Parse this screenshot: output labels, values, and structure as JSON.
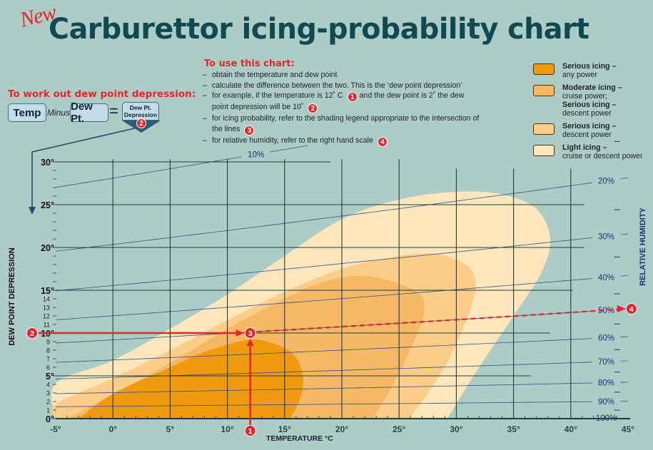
{
  "title": {
    "new": "New",
    "main": "Carburettor icing-probability chart"
  },
  "dew_point_box": {
    "heading": "To work out dew point depression:",
    "temp": "Temp",
    "minus": "Minus",
    "dew_pt": "Dew Pt.",
    "equals": "=",
    "result_line1": "Dew Pt.",
    "result_line2": "Depression",
    "marker": "2"
  },
  "instructions": {
    "heading": "To use this chart:",
    "items": [
      {
        "text": "obtain the temperature and dew point"
      },
      {
        "text": "calculate the difference between the two. This is the ‘dew point depression’"
      },
      {
        "text": "for example, if the temperature is 12˚ C",
        "marker": "1",
        "text2": " and the dew point is 2˚ the dew point depression will be 10˚",
        "marker2": "2"
      },
      {
        "text": "for icing probability, refer to the shading legend appropriate to the intersection of the lines",
        "marker": "3"
      },
      {
        "text": "for relative humidity, refer to the right hand scale",
        "marker": "4"
      }
    ]
  },
  "legend": [
    {
      "title": "Serious icing –",
      "sub": "any power",
      "color": "#f29a0e"
    },
    {
      "title": "Moderate icing –",
      "sub": "cruise power;",
      "title2": "Serious icing –",
      "sub2": "descent power",
      "color": "#f7b866"
    },
    {
      "title": "Serious icing –",
      "sub": "descent power",
      "color": "#fbcd88"
    },
    {
      "title": "Light icing –",
      "sub": "cruise or descent power",
      "color": "#fde6bb"
    }
  ],
  "colors": {
    "background": "#adccc6",
    "title": "#0f4a52",
    "accent_red": "#e1262e",
    "grid": "#1d3d38",
    "rh_lines": "#2e4f8a",
    "rh_label": "#1c2f7a"
  },
  "chart_data": {
    "type": "area",
    "xlabel": "TEMPERATURE °C",
    "ylabel": "DEW POINT DEPRESSION",
    "y2label": "RELATIVE HUMIDITY",
    "xlim": [
      -5,
      45
    ],
    "ylim": [
      0,
      30
    ],
    "grid": true,
    "x_ticks": [
      "-5°",
      "0°",
      "5°",
      "10°",
      "15°",
      "20°",
      "25°",
      "30°",
      "35°",
      "40°",
      "45°"
    ],
    "x_tick_values": [
      -5,
      0,
      5,
      10,
      15,
      20,
      25,
      30,
      35,
      40,
      45
    ],
    "y_major_ticks": [
      {
        "v": 0,
        "label": "0°"
      },
      {
        "v": 5,
        "label": "5°"
      },
      {
        "v": 10,
        "label": "10°"
      },
      {
        "v": 15,
        "label": "15°"
      },
      {
        "v": 20,
        "label": "20°"
      },
      {
        "v": 25,
        "label": "25°"
      },
      {
        "v": 30,
        "label": "30°"
      }
    ],
    "y_minor_ticks": [
      1,
      2,
      3,
      4,
      6,
      7,
      8,
      9,
      11,
      12,
      13,
      14
    ],
    "rh_lines": [
      {
        "rh": 10,
        "label": "10%"
      },
      {
        "rh": 20,
        "label": "20%"
      },
      {
        "rh": 30,
        "label": "30%"
      },
      {
        "rh": 40,
        "label": "40%"
      },
      {
        "rh": 50,
        "label": "50%"
      },
      {
        "rh": 60,
        "label": "60%"
      },
      {
        "rh": 70,
        "label": "70%"
      },
      {
        "rh": 80,
        "label": "80%"
      },
      {
        "rh": 90,
        "label": "90%"
      },
      {
        "rh": 100,
        "label": "100%"
      }
    ],
    "zones": [
      {
        "name": "Light icing – cruise or descent power",
        "color": "#fde6bb",
        "boundary": [
          [
            -5,
            0
          ],
          [
            -5,
            4.1
          ],
          [
            0,
            6.8
          ],
          [
            5,
            10.5
          ],
          [
            10,
            14.5
          ],
          [
            15,
            19
          ],
          [
            20,
            23.3
          ],
          [
            25,
            25.6
          ],
          [
            30,
            26.5
          ],
          [
            34,
            26.2
          ],
          [
            37,
            24.5
          ],
          [
            38.2,
            21
          ],
          [
            37.4,
            17
          ],
          [
            35,
            12
          ],
          [
            32,
            6
          ],
          [
            29.2,
            0
          ]
        ]
      },
      {
        "name": "Serious icing – descent power",
        "color": "#fbcd88",
        "boundary": [
          [
            -5,
            0
          ],
          [
            -5,
            1.7
          ],
          [
            0,
            4.7
          ],
          [
            5,
            8
          ],
          [
            10,
            11.5
          ],
          [
            15,
            14.8
          ],
          [
            20,
            17.5
          ],
          [
            25,
            19
          ],
          [
            28.4,
            19.2
          ],
          [
            31,
            17.8
          ],
          [
            31.7,
            15.5
          ],
          [
            31,
            12
          ],
          [
            29,
            6
          ],
          [
            25.9,
            0
          ]
        ]
      },
      {
        "name": "Moderate icing – cruise power; Serious icing – descent power",
        "color": "#f7b866",
        "boundary": [
          [
            -4,
            0
          ],
          [
            0,
            2.8
          ],
          [
            5,
            6.5
          ],
          [
            10,
            10.5
          ],
          [
            15,
            14
          ],
          [
            18,
            15.8
          ],
          [
            21.3,
            16.7
          ],
          [
            24.5,
            16
          ],
          [
            26.8,
            14.5
          ],
          [
            27.2,
            12.5
          ],
          [
            26.3,
            9
          ],
          [
            24.5,
            4
          ],
          [
            22.7,
            0
          ]
        ]
      },
      {
        "name": "Serious icing – any power",
        "color": "#f29a0e",
        "boundary": [
          [
            -3,
            0
          ],
          [
            0,
            2.9
          ],
          [
            5,
            6
          ],
          [
            8,
            7.8
          ],
          [
            11.8,
            9.2
          ],
          [
            14,
            8.8
          ],
          [
            15.8,
            7.5
          ],
          [
            16.6,
            5
          ],
          [
            16.4,
            2.5
          ],
          [
            15.5,
            0
          ]
        ]
      }
    ],
    "example": {
      "temperature": 12,
      "dew_point": 2,
      "dew_point_depression": 10,
      "relative_humidity": 50,
      "markers": {
        "temperature": "1",
        "depression": "2",
        "intersection": "3",
        "humidity": "4"
      }
    }
  }
}
